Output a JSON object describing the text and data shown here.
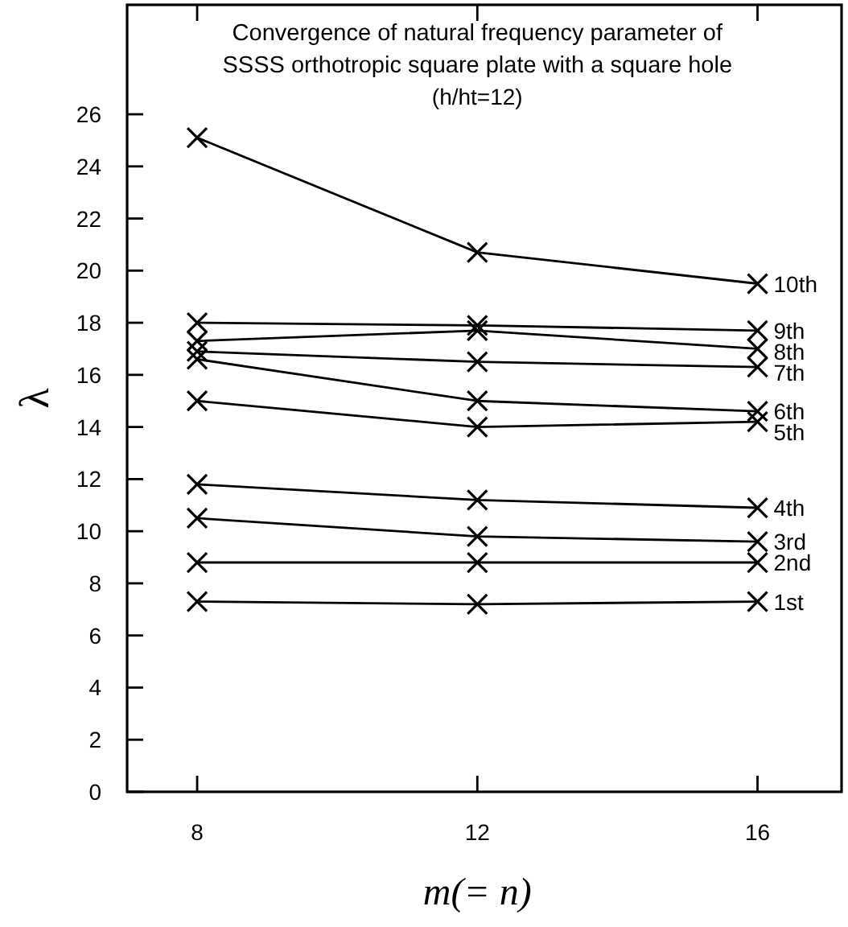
{
  "chart_data": {
    "type": "line",
    "title": "Convergence of natural frequency parameter of\nSSSS orthotropic square plate with a square hole",
    "subtitle": "(h/ht=12)",
    "xlabel": "m(= n)",
    "ylabel": "λ",
    "x": [
      8,
      12,
      16
    ],
    "xlim": [
      7,
      17.2
    ],
    "xticks": [
      8,
      12,
      16
    ],
    "ylim": [
      0,
      30.2
    ],
    "yticks": [
      0,
      2,
      4,
      6,
      8,
      10,
      12,
      14,
      16,
      18,
      20,
      22,
      24,
      26
    ],
    "marker": "cross",
    "line_style": "solid",
    "grid": false,
    "series": [
      {
        "name": "1st",
        "color": "#000000",
        "values": [
          7.3,
          7.2,
          7.3
        ]
      },
      {
        "name": "2nd",
        "color": "#000000",
        "values": [
          8.8,
          8.8,
          8.8
        ]
      },
      {
        "name": "3rd",
        "color": "#000000",
        "values": [
          10.5,
          9.8,
          9.6
        ]
      },
      {
        "name": "4th",
        "color": "#000000",
        "values": [
          11.8,
          11.2,
          10.9
        ]
      },
      {
        "name": "5th",
        "color": "#000000",
        "values": [
          15.0,
          14.0,
          14.2
        ]
      },
      {
        "name": "6th",
        "color": "#000000",
        "values": [
          16.6,
          15.0,
          14.6
        ]
      },
      {
        "name": "7th",
        "color": "#000000",
        "values": [
          16.9,
          16.5,
          16.3
        ]
      },
      {
        "name": "8th",
        "color": "#000000",
        "values": [
          17.3,
          17.7,
          17.0
        ]
      },
      {
        "name": "9th",
        "color": "#000000",
        "values": [
          18.0,
          17.9,
          17.7
        ]
      },
      {
        "name": "10th",
        "color": "#000000",
        "values": [
          25.1,
          20.7,
          19.5
        ]
      }
    ]
  }
}
